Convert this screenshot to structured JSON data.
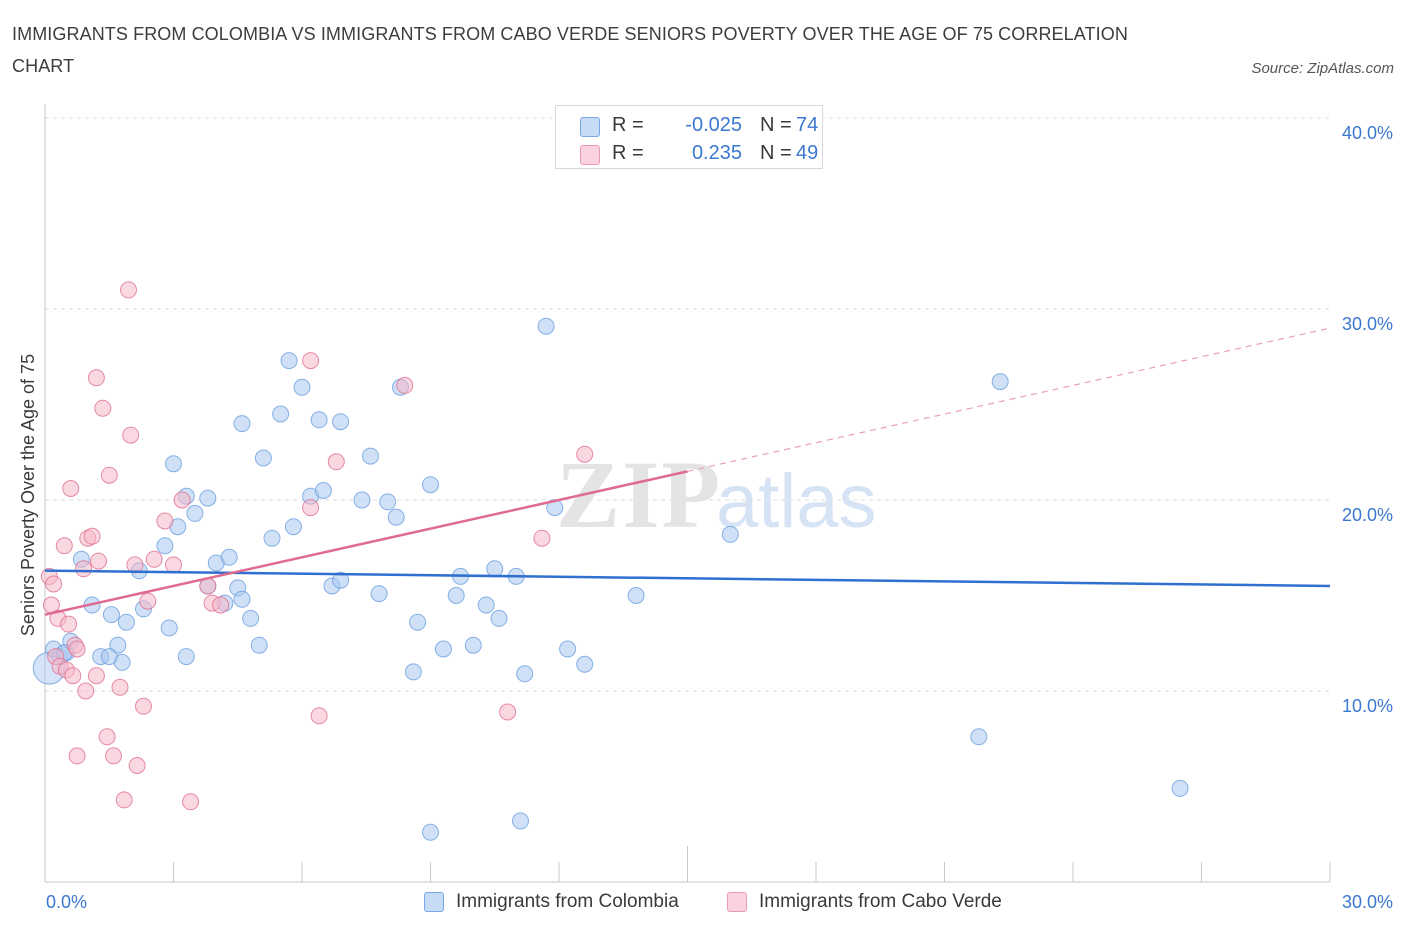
{
  "title": "IMMIGRANTS FROM COLOMBIA VS IMMIGRANTS FROM CABO VERDE SENIORS POVERTY OVER THE AGE OF 75 CORRELATION CHART",
  "source": "Source: ZipAtlas.com",
  "watermark": {
    "zip": "ZIP",
    "atlas": "atlas"
  },
  "legend": {
    "r_label": "R =",
    "n_label": "N =",
    "rows": [
      {
        "r": "-0.025",
        "n": "74",
        "color": "#a9c8f0"
      },
      {
        "r": "0.235",
        "n": "49",
        "color": "#f6b8cb"
      }
    ]
  },
  "bottom_legend": [
    {
      "label": "Immigrants from Colombia",
      "color": "#a9c8f0"
    },
    {
      "label": "Immigrants from Cabo Verde",
      "color": "#f6b8cb"
    }
  ],
  "chart_data": {
    "type": "scatter",
    "title": "IMMIGRANTS FROM COLOMBIA VS IMMIGRANTS FROM CABO VERDE SENIORS POVERTY OVER THE AGE OF 75 CORRELATION CHART",
    "xlabel": "",
    "ylabel": "Seniors Poverty Over the Age of 75",
    "xlim": [
      0,
      30
    ],
    "ylim": [
      0,
      40
    ],
    "x_tick_labels": [
      "0.0%",
      "30.0%"
    ],
    "y_ticks": [
      10,
      20,
      30,
      40
    ],
    "y_tick_labels": [
      "10.0%",
      "20.0%",
      "30.0%",
      "40.0%"
    ],
    "grid": true,
    "legend_position": "top-center",
    "series": [
      {
        "name": "Immigrants from Colombia",
        "color": "#6a9fe0",
        "fill": "#a9c8f0",
        "R": -0.025,
        "N": 74,
        "trend": {
          "x": [
            0,
            30
          ],
          "y": [
            16.3,
            15.5
          ],
          "dashed_from": null
        },
        "points": [
          [
            0.1,
            11.2
          ],
          [
            0.2,
            12.2
          ],
          [
            0.35,
            11.8
          ],
          [
            0.5,
            12.0
          ],
          [
            0.6,
            12.6
          ],
          [
            0.85,
            16.9
          ],
          [
            1.1,
            14.5
          ],
          [
            1.3,
            11.8
          ],
          [
            1.55,
            14.0
          ],
          [
            1.7,
            12.4
          ],
          [
            1.9,
            13.6
          ],
          [
            2.2,
            16.3
          ],
          [
            1.8,
            11.5
          ],
          [
            2.8,
            17.6
          ],
          [
            3.1,
            18.6
          ],
          [
            3.0,
            21.9
          ],
          [
            3.5,
            19.3
          ],
          [
            3.8,
            20.1
          ],
          [
            3.3,
            20.2
          ],
          [
            4.0,
            16.7
          ],
          [
            4.3,
            17.0
          ],
          [
            4.5,
            15.4
          ],
          [
            4.6,
            14.8
          ],
          [
            4.2,
            14.6
          ],
          [
            4.8,
            13.8
          ],
          [
            5.0,
            12.4
          ],
          [
            2.9,
            13.3
          ],
          [
            3.3,
            11.8
          ],
          [
            4.6,
            24.0
          ],
          [
            5.1,
            22.2
          ],
          [
            5.3,
            18.0
          ],
          [
            5.5,
            24.5
          ],
          [
            5.7,
            27.3
          ],
          [
            5.8,
            18.6
          ],
          [
            6.0,
            25.9
          ],
          [
            6.2,
            20.2
          ],
          [
            6.4,
            24.2
          ],
          [
            6.5,
            20.5
          ],
          [
            6.7,
            15.5
          ],
          [
            6.9,
            24.1
          ],
          [
            6.9,
            15.8
          ],
          [
            7.4,
            20.0
          ],
          [
            7.6,
            22.3
          ],
          [
            7.8,
            15.1
          ],
          [
            8.0,
            19.9
          ],
          [
            8.2,
            19.1
          ],
          [
            8.3,
            25.9
          ],
          [
            8.7,
            13.6
          ],
          [
            8.6,
            11.0
          ],
          [
            9.0,
            20.8
          ],
          [
            9.3,
            12.2
          ],
          [
            9.6,
            15.0
          ],
          [
            9.7,
            16.0
          ],
          [
            10.0,
            12.4
          ],
          [
            10.3,
            14.5
          ],
          [
            10.5,
            16.4
          ],
          [
            10.6,
            13.8
          ],
          [
            11.0,
            16.0
          ],
          [
            11.2,
            10.9
          ],
          [
            11.7,
            29.1
          ],
          [
            11.9,
            19.6
          ],
          [
            12.2,
            12.2
          ],
          [
            12.6,
            11.4
          ],
          [
            13.8,
            15.0
          ],
          [
            16.0,
            18.2
          ],
          [
            21.8,
            7.6
          ],
          [
            22.3,
            26.2
          ],
          [
            26.5,
            4.9
          ],
          [
            11.1,
            3.2
          ],
          [
            9.0,
            2.6
          ],
          [
            1.5,
            11.8
          ],
          [
            2.3,
            14.3
          ],
          [
            3.8,
            15.5
          ],
          [
            0.45,
            12.0
          ]
        ]
      },
      {
        "name": "Immigrants from Cabo Verde",
        "color": "#e0708f",
        "fill": "#f6b8cb",
        "R": 0.235,
        "N": 49,
        "trend": {
          "x": [
            0,
            15
          ],
          "y": [
            14.0,
            21.5
          ],
          "dashed_to": [
            30,
            29.0
          ]
        },
        "points": [
          [
            0.1,
            16.0
          ],
          [
            0.15,
            14.5
          ],
          [
            0.2,
            15.6
          ],
          [
            0.25,
            11.8
          ],
          [
            0.3,
            13.8
          ],
          [
            0.35,
            11.3
          ],
          [
            0.45,
            17.6
          ],
          [
            0.5,
            11.1
          ],
          [
            0.55,
            13.5
          ],
          [
            0.6,
            20.6
          ],
          [
            0.65,
            10.8
          ],
          [
            0.7,
            12.4
          ],
          [
            0.75,
            12.2
          ],
          [
            0.9,
            16.4
          ],
          [
            0.95,
            10.0
          ],
          [
            1.0,
            18.0
          ],
          [
            1.1,
            18.1
          ],
          [
            1.2,
            10.8
          ],
          [
            1.25,
            16.8
          ],
          [
            1.2,
            26.4
          ],
          [
            1.35,
            24.8
          ],
          [
            1.5,
            21.3
          ],
          [
            1.45,
            7.6
          ],
          [
            1.6,
            6.6
          ],
          [
            1.75,
            10.2
          ],
          [
            1.85,
            4.3
          ],
          [
            1.95,
            31.0
          ],
          [
            2.0,
            23.4
          ],
          [
            2.15,
            6.1
          ],
          [
            2.1,
            16.6
          ],
          [
            2.3,
            9.2
          ],
          [
            2.4,
            14.7
          ],
          [
            2.55,
            16.9
          ],
          [
            2.8,
            18.9
          ],
          [
            3.0,
            16.6
          ],
          [
            3.2,
            20.0
          ],
          [
            3.4,
            4.2
          ],
          [
            3.8,
            15.5
          ],
          [
            3.9,
            14.6
          ],
          [
            4.1,
            14.5
          ],
          [
            6.2,
            27.3
          ],
          [
            6.2,
            19.6
          ],
          [
            6.4,
            8.7
          ],
          [
            6.8,
            22.0
          ],
          [
            8.4,
            26.0
          ],
          [
            10.8,
            8.9
          ],
          [
            11.6,
            18.0
          ],
          [
            12.6,
            22.4
          ],
          [
            0.75,
            6.6
          ]
        ]
      }
    ]
  }
}
